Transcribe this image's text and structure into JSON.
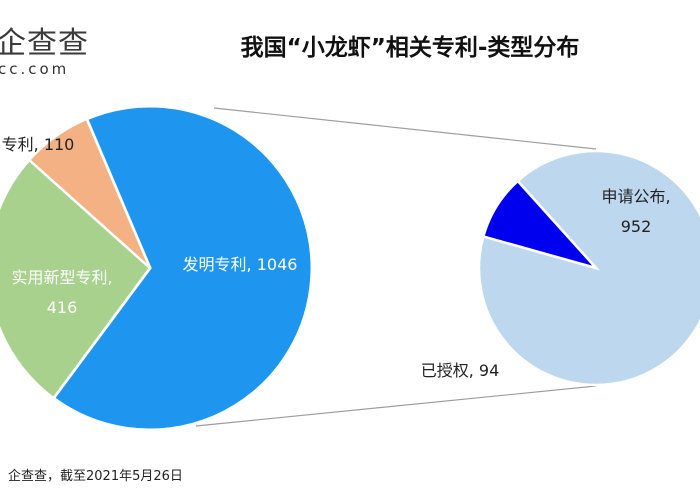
{
  "brand": {
    "name_cn": "企查查",
    "domain_partial": "cc.com"
  },
  "title": "我国“小龙虾”相关专利-类型分布",
  "source_note": "企查查，截至2021年5月26日",
  "chart_data": [
    {
      "type": "pie",
      "title": "我国“小龙虾”相关专利-类型分布",
      "slices": [
        {
          "label": "发明专利",
          "value": 1046,
          "color": "#1E96F0",
          "text_color": "#ffffff",
          "display": [
            "发明专利, 1046"
          ]
        },
        {
          "label": "实用新型专利",
          "value": 416,
          "color": "#A9D18E",
          "text_color": "#ffffff",
          "display": [
            "实用新型专利,",
            "416"
          ]
        },
        {
          "label": "外观设计专利",
          "value": 110,
          "color": "#F4B183",
          "text_color": "#222222",
          "display": [
            "专利, 110"
          ]
        }
      ]
    },
    {
      "type": "pie",
      "subset_of": "发明专利",
      "slices": [
        {
          "label": "申请公布",
          "value": 952,
          "color": "#BDD7EE",
          "text_color": "#222222",
          "display": [
            "申请公布,",
            "952"
          ]
        },
        {
          "label": "已授权",
          "value": 94,
          "color": "#0000EE",
          "text_color": "#222222",
          "display": [
            "已授权, 94"
          ]
        }
      ]
    }
  ]
}
